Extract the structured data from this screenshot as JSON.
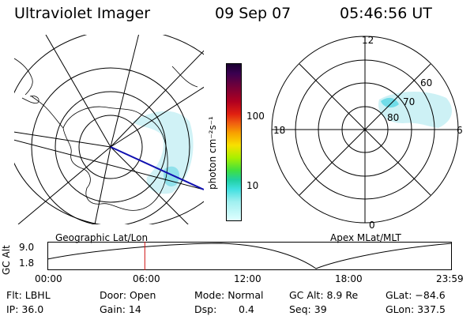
{
  "header": {
    "title": "Ultraviolet Imager",
    "date": "09 Sep 07",
    "time": "05:46:56 UT"
  },
  "left_map": {
    "caption": "Geographic Lat/Lon"
  },
  "right_map": {
    "caption": "Apex MLat/MLT",
    "mlt_labels": [
      "12",
      "18",
      "6",
      "0"
    ],
    "mlat_labels": [
      "60",
      "70",
      "80"
    ]
  },
  "colorbar": {
    "label": "photon cm⁻²s⁻¹",
    "ticks": [
      "100",
      "10"
    ],
    "colors": [
      "#1a0030",
      "#3a0050",
      "#70003a",
      "#b00020",
      "#e02010",
      "#f06010",
      "#f8a000",
      "#f8e000",
      "#a8f000",
      "#40e040",
      "#20d0a0",
      "#40e0e0",
      "#a0f0f0",
      "#e0ffff"
    ]
  },
  "altitude_plot": {
    "ylabel": "GC Alt",
    "y_ticks": [
      "9.0",
      "1.8"
    ],
    "x_ticks": [
      "00:00",
      "06:00",
      "12:00",
      "18:00",
      "23:59"
    ],
    "current_time_hours": 5.78
  },
  "info": {
    "flt": "Flt: LBHL",
    "door": "Door: Open",
    "mode": "Mode: Normal",
    "gc_alt": "GC Alt: 8.9 Re",
    "glat": "GLat: −84.6",
    "ip": "IP: 36.0",
    "gain": "Gain: 14",
    "dsp_label": "Dsp:",
    "dsp_value": "0.4",
    "seq": "Seq: 39",
    "glon": "GLon: 337.5"
  },
  "colors": {
    "aurora": "#b8ecf0",
    "aurora_bright": "#70dce8",
    "track": "#1010b0",
    "time_marker": "#d01010"
  }
}
